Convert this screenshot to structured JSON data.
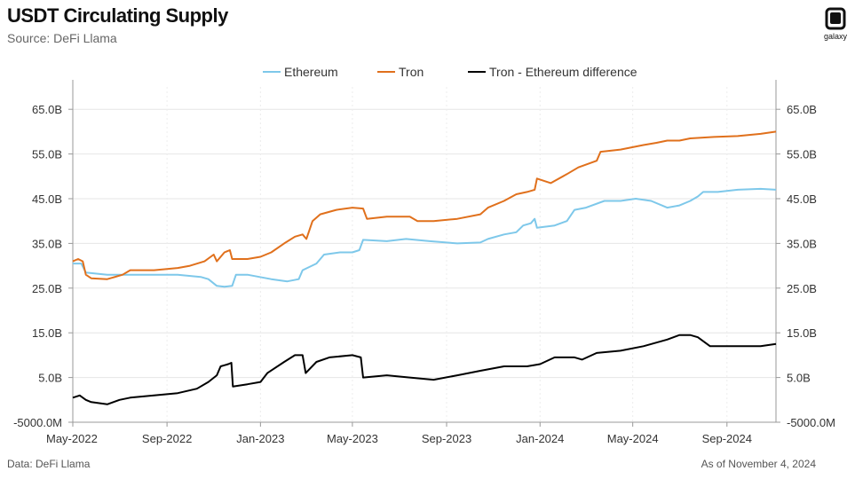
{
  "header": {
    "title": "USDT Circulating Supply",
    "subtitle": "Source: DeFi Llama",
    "logo_text": "galaxy"
  },
  "footer": {
    "left": "Data: DeFi Llama",
    "right": "As of November 4, 2024"
  },
  "colors": {
    "ethereum": "#7ec8ea",
    "tron": "#e0701c",
    "difference": "#000000",
    "grid": "#e6e6e6",
    "axis": "#999999"
  },
  "chart_data": {
    "type": "line",
    "title": "USDT Circulating Supply",
    "subtitle": "Source: DeFi Llama",
    "legend_position": "top-center",
    "grid": true,
    "y_ticks": [
      "65.0B",
      "55.0B",
      "45.0B",
      "35.0B",
      "25.0B",
      "15.0B",
      "5.0B",
      "-5000.0M"
    ],
    "y_tick_values": [
      65,
      55,
      45,
      35,
      25,
      15,
      5,
      -5
    ],
    "ylim": [
      -5,
      70
    ],
    "y_unit": "billion USD",
    "x_ticks": [
      "May-2022",
      "Sep-2022",
      "Jan-2023",
      "May-2023",
      "Sep-2023",
      "Jan-2024",
      "May-2024",
      "Sep-2024"
    ],
    "x_tick_dates": [
      "2022-05-01",
      "2022-09-01",
      "2023-01-01",
      "2023-05-01",
      "2023-09-01",
      "2024-01-01",
      "2024-05-01",
      "2024-09-01"
    ],
    "xlim": [
      "2022-05-01",
      "2024-11-04"
    ],
    "series": [
      {
        "name": "Ethereum",
        "color_key": "ethereum",
        "points": [
          [
            "2022-05-01",
            30.5
          ],
          [
            "2022-05-12",
            30.5
          ],
          [
            "2022-05-18",
            28.5
          ],
          [
            "2022-06-15",
            28.0
          ],
          [
            "2022-07-15",
            28.0
          ],
          [
            "2022-08-15",
            28.0
          ],
          [
            "2022-09-15",
            28.0
          ],
          [
            "2022-10-15",
            27.5
          ],
          [
            "2022-10-25",
            27.0
          ],
          [
            "2022-11-05",
            25.5
          ],
          [
            "2022-11-15",
            25.3
          ],
          [
            "2022-11-25",
            25.5
          ],
          [
            "2022-11-30",
            28.0
          ],
          [
            "2022-12-15",
            28.0
          ],
          [
            "2023-01-15",
            27.0
          ],
          [
            "2023-02-05",
            26.5
          ],
          [
            "2023-02-20",
            27.0
          ],
          [
            "2023-02-25",
            29.0
          ],
          [
            "2023-03-15",
            30.5
          ],
          [
            "2023-03-25",
            32.5
          ],
          [
            "2023-04-15",
            33.0
          ],
          [
            "2023-05-01",
            33.0
          ],
          [
            "2023-05-10",
            33.5
          ],
          [
            "2023-05-15",
            35.8
          ],
          [
            "2023-06-15",
            35.5
          ],
          [
            "2023-07-10",
            36.0
          ],
          [
            "2023-08-10",
            35.5
          ],
          [
            "2023-09-15",
            35.0
          ],
          [
            "2023-10-15",
            35.2
          ],
          [
            "2023-10-25",
            36.0
          ],
          [
            "2023-11-15",
            37.0
          ],
          [
            "2023-12-01",
            37.5
          ],
          [
            "2023-12-10",
            39.0
          ],
          [
            "2023-12-20",
            39.5
          ],
          [
            "2023-12-25",
            40.5
          ],
          [
            "2023-12-28",
            38.5
          ],
          [
            "2024-01-20",
            39.0
          ],
          [
            "2024-02-05",
            40.0
          ],
          [
            "2024-02-15",
            42.5
          ],
          [
            "2024-03-01",
            43.0
          ],
          [
            "2024-03-25",
            44.5
          ],
          [
            "2024-04-15",
            44.5
          ],
          [
            "2024-05-05",
            45.0
          ],
          [
            "2024-05-25",
            44.5
          ],
          [
            "2024-06-15",
            43.0
          ],
          [
            "2024-07-01",
            43.5
          ],
          [
            "2024-07-15",
            44.5
          ],
          [
            "2024-07-25",
            45.5
          ],
          [
            "2024-08-01",
            46.5
          ],
          [
            "2024-08-20",
            46.5
          ],
          [
            "2024-09-15",
            47.0
          ],
          [
            "2024-10-15",
            47.2
          ],
          [
            "2024-11-04",
            47.0
          ]
        ]
      },
      {
        "name": "Tron",
        "color_key": "tron",
        "points": [
          [
            "2022-05-01",
            31.0
          ],
          [
            "2022-05-08",
            31.5
          ],
          [
            "2022-05-14",
            31.0
          ],
          [
            "2022-05-18",
            28.0
          ],
          [
            "2022-05-25",
            27.2
          ],
          [
            "2022-06-15",
            27.0
          ],
          [
            "2022-07-05",
            28.0
          ],
          [
            "2022-07-15",
            29.0
          ],
          [
            "2022-08-15",
            29.0
          ],
          [
            "2022-09-15",
            29.5
          ],
          [
            "2022-10-01",
            30.0
          ],
          [
            "2022-10-20",
            31.0
          ],
          [
            "2022-11-01",
            32.5
          ],
          [
            "2022-11-05",
            31.0
          ],
          [
            "2022-11-15",
            33.0
          ],
          [
            "2022-11-22",
            33.5
          ],
          [
            "2022-11-25",
            31.5
          ],
          [
            "2022-12-15",
            31.5
          ],
          [
            "2023-01-01",
            32.0
          ],
          [
            "2023-01-15",
            33.0
          ],
          [
            "2023-02-01",
            35.0
          ],
          [
            "2023-02-15",
            36.5
          ],
          [
            "2023-02-25",
            37.0
          ],
          [
            "2023-03-02",
            36.0
          ],
          [
            "2023-03-10",
            40.0
          ],
          [
            "2023-03-20",
            41.5
          ],
          [
            "2023-04-10",
            42.5
          ],
          [
            "2023-05-01",
            43.0
          ],
          [
            "2023-05-15",
            42.8
          ],
          [
            "2023-05-20",
            40.5
          ],
          [
            "2023-06-15",
            41.0
          ],
          [
            "2023-07-15",
            41.0
          ],
          [
            "2023-07-25",
            40.0
          ],
          [
            "2023-08-15",
            40.0
          ],
          [
            "2023-09-15",
            40.5
          ],
          [
            "2023-10-15",
            41.5
          ],
          [
            "2023-10-25",
            43.0
          ],
          [
            "2023-11-15",
            44.5
          ],
          [
            "2023-12-01",
            46.0
          ],
          [
            "2023-12-15",
            46.5
          ],
          [
            "2023-12-25",
            47.0
          ],
          [
            "2023-12-28",
            49.5
          ],
          [
            "2024-01-15",
            48.5
          ],
          [
            "2024-02-05",
            50.5
          ],
          [
            "2024-02-20",
            52.0
          ],
          [
            "2024-03-15",
            53.5
          ],
          [
            "2024-03-20",
            55.5
          ],
          [
            "2024-04-15",
            56.0
          ],
          [
            "2024-05-15",
            57.0
          ],
          [
            "2024-06-01",
            57.5
          ],
          [
            "2024-06-15",
            58.0
          ],
          [
            "2024-07-01",
            58.0
          ],
          [
            "2024-07-15",
            58.5
          ],
          [
            "2024-08-15",
            58.8
          ],
          [
            "2024-09-15",
            59.0
          ],
          [
            "2024-10-15",
            59.5
          ],
          [
            "2024-11-04",
            60.0
          ]
        ]
      },
      {
        "name": "Tron - Ethereum difference",
        "color_key": "difference",
        "points": [
          [
            "2022-05-01",
            0.5
          ],
          [
            "2022-05-10",
            1.0
          ],
          [
            "2022-05-18",
            0.0
          ],
          [
            "2022-05-25",
            -0.5
          ],
          [
            "2022-06-15",
            -1.0
          ],
          [
            "2022-07-01",
            0.0
          ],
          [
            "2022-07-15",
            0.5
          ],
          [
            "2022-08-15",
            1.0
          ],
          [
            "2022-09-15",
            1.5
          ],
          [
            "2022-10-10",
            2.5
          ],
          [
            "2022-10-25",
            4.0
          ],
          [
            "2022-11-05",
            5.5
          ],
          [
            "2022-11-10",
            7.5
          ],
          [
            "2022-11-20",
            8.0
          ],
          [
            "2022-11-24",
            8.3
          ],
          [
            "2022-11-26",
            3.0
          ],
          [
            "2022-12-15",
            3.5
          ],
          [
            "2023-01-01",
            4.0
          ],
          [
            "2023-01-10",
            6.0
          ],
          [
            "2023-02-01",
            8.5
          ],
          [
            "2023-02-15",
            10.0
          ],
          [
            "2023-02-25",
            10.0
          ],
          [
            "2023-03-01",
            6.0
          ],
          [
            "2023-03-15",
            8.5
          ],
          [
            "2023-04-01",
            9.5
          ],
          [
            "2023-05-01",
            10.0
          ],
          [
            "2023-05-12",
            9.5
          ],
          [
            "2023-05-15",
            5.0
          ],
          [
            "2023-06-15",
            5.5
          ],
          [
            "2023-07-15",
            5.0
          ],
          [
            "2023-08-15",
            4.5
          ],
          [
            "2023-09-15",
            5.5
          ],
          [
            "2023-10-15",
            6.5
          ],
          [
            "2023-11-15",
            7.5
          ],
          [
            "2023-12-15",
            7.5
          ],
          [
            "2024-01-01",
            8.0
          ],
          [
            "2024-01-20",
            9.5
          ],
          [
            "2024-02-15",
            9.5
          ],
          [
            "2024-02-25",
            9.0
          ],
          [
            "2024-03-15",
            10.5
          ],
          [
            "2024-04-15",
            11.0
          ],
          [
            "2024-05-15",
            12.0
          ],
          [
            "2024-06-15",
            13.5
          ],
          [
            "2024-07-01",
            14.5
          ],
          [
            "2024-07-15",
            14.5
          ],
          [
            "2024-07-25",
            14.0
          ],
          [
            "2024-08-10",
            12.0
          ],
          [
            "2024-09-15",
            12.0
          ],
          [
            "2024-10-15",
            12.0
          ],
          [
            "2024-11-04",
            12.5
          ]
        ]
      }
    ]
  }
}
